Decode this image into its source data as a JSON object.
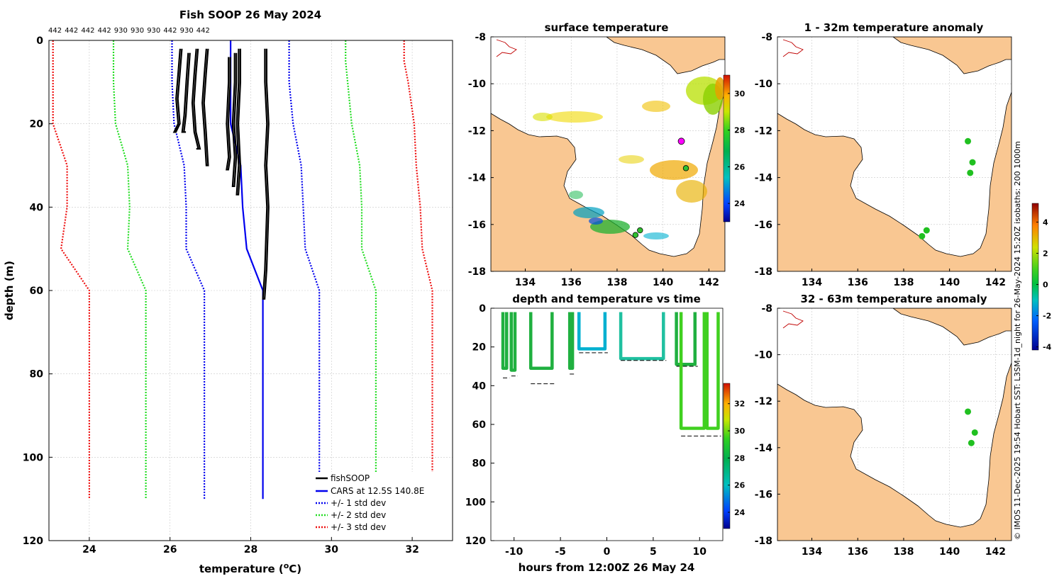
{
  "footer_text": "© IMOS 11-Dec-2025 19:54 Hobart SST: L3SM-1d_night for 26-May-2024 15:20Z  isobaths: 200  1000m",
  "chart_data": [
    {
      "id": "profile",
      "type": "line",
      "title": "Fish SOOP 26 May 2024",
      "top_labels": [
        "442",
        "442",
        "442",
        "442",
        "930",
        "930",
        "930",
        "442",
        "930",
        "442"
      ],
      "xlabel": "temperature (°C)",
      "ylabel": "depth (m)",
      "xlim": [
        23,
        33
      ],
      "ylim": [
        0,
        120
      ],
      "xticks": [
        "24",
        "26",
        "28",
        "30",
        "32"
      ],
      "yticks": [
        "0",
        "20",
        "40",
        "60",
        "80",
        "100",
        "120"
      ],
      "legend": {
        "position": "bottom-right",
        "entries": [
          "fishSOOP",
          "CARS at 12.5S 140.8E",
          "+/- 1 std dev",
          "+/- 2 std dev",
          "+/- 3 std dev"
        ]
      },
      "colors": {
        "fish": "#000000",
        "cars": "#0000ee",
        "sd1": "#0000ee",
        "sd2": "#22dd22",
        "sd3": "#ee1111"
      },
      "cars": {
        "depth": [
          0,
          5,
          10,
          20,
          30,
          40,
          50,
          60,
          62,
          110
        ],
        "temp": [
          27.5,
          27.5,
          27.5,
          27.5,
          27.75,
          27.8,
          27.9,
          28.3,
          28.3,
          28.3
        ]
      },
      "std_depth": [
        0,
        5,
        10,
        20,
        30,
        40,
        50,
        60,
        110
      ],
      "std": {
        "sd1": {
          "minus": [
            26.05,
            26.05,
            26.05,
            26.1,
            26.35,
            26.4,
            26.4,
            26.85,
            26.85
          ],
          "plus": [
            28.95,
            28.95,
            28.95,
            29.05,
            29.25,
            29.3,
            29.35,
            29.7,
            29.7
          ]
        },
        "sd2": {
          "minus": [
            24.6,
            24.6,
            24.6,
            24.65,
            24.95,
            25.0,
            24.95,
            25.4,
            25.4
          ],
          "plus": [
            30.35,
            30.35,
            30.4,
            30.5,
            30.7,
            30.75,
            30.75,
            31.1,
            31.1
          ]
        },
        "sd3": {
          "minus": [
            23.1,
            23.1,
            23.1,
            23.1,
            23.45,
            23.45,
            23.3,
            24.0,
            24.0
          ],
          "plus": [
            31.8,
            31.8,
            31.9,
            32.05,
            32.1,
            32.2,
            32.25,
            32.5,
            32.5
          ]
        }
      },
      "fish_profiles": [
        {
          "temp": [
            26.25,
            26.2,
            26.15,
            26.2,
            26.1
          ],
          "depth": [
            2,
            8,
            14,
            20,
            22
          ]
        },
        {
          "temp": [
            26.45,
            26.4,
            26.35,
            26.3,
            26.35
          ],
          "depth": [
            3,
            10,
            18,
            22,
            22
          ]
        },
        {
          "temp": [
            26.65,
            26.6,
            26.55,
            26.6,
            26.7,
            26.65
          ],
          "depth": [
            2,
            8,
            15,
            22,
            26,
            26
          ]
        },
        {
          "temp": [
            26.9,
            26.85,
            26.8,
            26.85,
            26.9
          ],
          "depth": [
            2,
            8,
            15,
            22,
            30
          ]
        },
        {
          "temp": [
            27.45,
            27.45,
            27.4,
            27.45,
            27.4
          ],
          "depth": [
            4,
            10,
            20,
            28,
            31
          ]
        },
        {
          "temp": [
            27.6,
            27.6,
            27.55,
            27.6,
            27.55
          ],
          "depth": [
            3,
            10,
            20,
            28,
            35
          ]
        },
        {
          "temp": [
            27.7,
            27.7,
            27.65,
            27.7,
            27.65
          ],
          "depth": [
            2,
            10,
            20,
            30,
            37
          ]
        },
        {
          "temp": [
            28.35,
            28.35,
            28.4,
            28.35,
            28.4,
            28.35,
            28.3
          ],
          "depth": [
            2,
            10,
            20,
            30,
            40,
            55,
            62
          ]
        }
      ]
    },
    {
      "id": "sst-map",
      "type": "heatmap",
      "title": "surface temperature",
      "xlim": [
        132.5,
        142.7
      ],
      "ylim": [
        -18,
        -8
      ],
      "xticks": [
        "134",
        "136",
        "138",
        "140",
        "142"
      ],
      "yticks": [
        "-8",
        "-10",
        "-12",
        "-14",
        "-16",
        "-18"
      ],
      "colorbar": {
        "min": 23,
        "max": 31,
        "ticks": [
          "24",
          "26",
          "28",
          "30"
        ]
      },
      "markers": [
        {
          "lon": 140.8,
          "lat": -12.45,
          "role": "CARS position"
        },
        {
          "lon": 141.0,
          "lat": -13.6
        },
        {
          "lon": 138.8,
          "lat": -16.45
        },
        {
          "lon": 139.0,
          "lat": -16.25
        }
      ]
    },
    {
      "id": "anom-1-32",
      "type": "scatter",
      "title": "1 - 32m temperature anomaly",
      "xlim": [
        132.5,
        142.7
      ],
      "ylim": [
        -18,
        -8
      ],
      "xticks": [
        "134",
        "136",
        "138",
        "140",
        "142"
      ],
      "yticks": [
        "-8",
        "-10",
        "-12",
        "-14",
        "-16",
        "-18"
      ],
      "points": [
        {
          "lon": 140.8,
          "lat": -12.45
        },
        {
          "lon": 141.0,
          "lat": -13.35
        },
        {
          "lon": 140.9,
          "lat": -13.8
        },
        {
          "lon": 139.0,
          "lat": -16.25
        },
        {
          "lon": 138.8,
          "lat": -16.5
        }
      ]
    },
    {
      "id": "anom-32-63",
      "type": "scatter",
      "title": "32 - 63m temperature anomaly",
      "xlim": [
        132.5,
        142.7
      ],
      "ylim": [
        -18,
        -8
      ],
      "xticks": [
        "134",
        "136",
        "138",
        "140",
        "142"
      ],
      "yticks": [
        "-8",
        "-10",
        "-12",
        "-14",
        "-16",
        "-18"
      ],
      "points": [
        {
          "lon": 140.8,
          "lat": -12.45
        },
        {
          "lon": 141.1,
          "lat": -13.35
        },
        {
          "lon": 140.95,
          "lat": -13.8
        }
      ],
      "colorbar": {
        "min": -4.2,
        "max": 5.2,
        "ticks": [
          "4",
          "2",
          "0",
          "-2",
          "-4"
        ]
      }
    },
    {
      "id": "depth-time",
      "type": "scatter",
      "title": "depth and temperature vs time",
      "xlabel": "hours from 12:00Z 26 May 24",
      "xlim": [
        -12.5,
        12.5
      ],
      "ylim": [
        0,
        120
      ],
      "xticks": [
        "-10",
        "-5",
        "0",
        "5",
        "10"
      ],
      "yticks": [
        "0",
        "20",
        "40",
        "60",
        "80",
        "100",
        "120"
      ],
      "colorbar": {
        "min": 22.8,
        "max": 33.5,
        "ticks": [
          "24",
          "26",
          "28",
          "30",
          "32"
        ]
      },
      "casts": [
        {
          "start": -11.2,
          "end": -10.8,
          "depth": 31,
          "temp": 27.2,
          "bottom": 36
        },
        {
          "start": -10.3,
          "end": -9.9,
          "depth": 32,
          "temp": 27.3,
          "bottom": 35
        },
        {
          "start": -8.2,
          "end": -5.9,
          "depth": 31,
          "temp": 27.3,
          "bottom": 39
        },
        {
          "start": -4.0,
          "end": -3.7,
          "depth": 31,
          "temp": 27.4,
          "bottom": 34
        },
        {
          "start": -3.0,
          "end": -0.2,
          "depth": 21,
          "temp": 25.9,
          "bottom": 23
        },
        {
          "start": 1.5,
          "end": 6.1,
          "depth": 26,
          "temp": 26.5,
          "bottom": 27
        },
        {
          "start": 7.5,
          "end": 9.5,
          "depth": 29,
          "temp": 27.2,
          "bottom": 30
        },
        {
          "start": 8.0,
          "end": 10.5,
          "depth": 62,
          "temp": 28.4,
          "bottom": 66
        },
        {
          "start": 10.8,
          "end": 12.0,
          "depth": 62,
          "temp": 28.4,
          "bottom": 66
        }
      ]
    }
  ]
}
